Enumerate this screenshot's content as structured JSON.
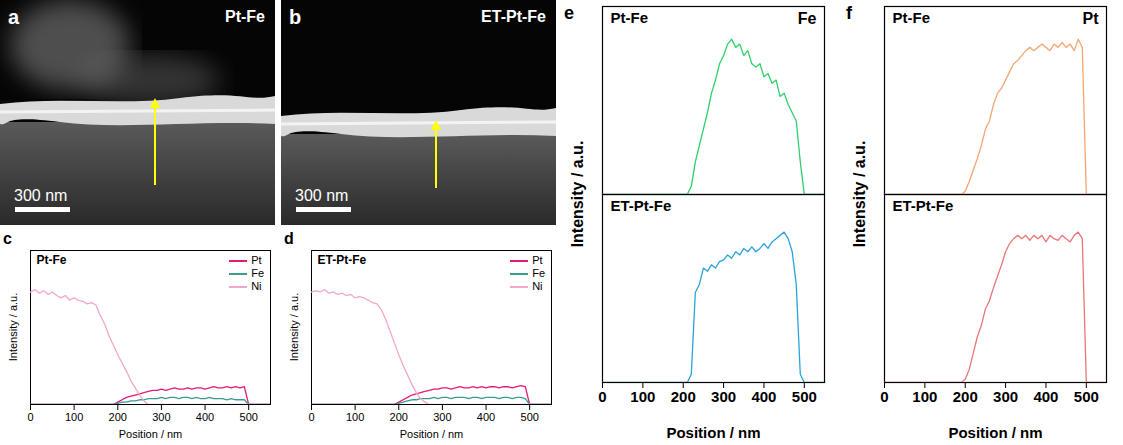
{
  "images": [
    {
      "panel_label": "a",
      "label": "Pt-Fe",
      "scale_bar": "300 nm"
    },
    {
      "panel_label": "b",
      "label": "ET-Pt-Fe",
      "scale_bar": "300 nm"
    }
  ],
  "chart_data": [
    {
      "panel_label": "c",
      "type": "line",
      "title": "Pt-Fe",
      "xlabel": "Position / nm",
      "ylabel": "Intensity / a.u.",
      "x": [
        0,
        10,
        20,
        30,
        40,
        50,
        60,
        70,
        80,
        90,
        100,
        110,
        120,
        130,
        140,
        150,
        160,
        170,
        180,
        190,
        200,
        210,
        220,
        230,
        240,
        250,
        260,
        270,
        280,
        290,
        300,
        310,
        320,
        330,
        340,
        350,
        360,
        370,
        380,
        390,
        400,
        410,
        420,
        430,
        440,
        450,
        460,
        470,
        480,
        490,
        500,
        510,
        520,
        530,
        540,
        550
      ],
      "xlim": [
        0,
        550
      ],
      "xticks": [
        0,
        100,
        200,
        300,
        400,
        500
      ],
      "ylim": [
        0,
        1.3
      ],
      "yticks": [],
      "tick_labels": "x",
      "legend": "top-right",
      "series": [
        {
          "name": "Pt",
          "color": "#e4197c",
          "values": [
            0,
            0,
            0,
            0,
            0,
            0,
            0,
            0,
            0,
            0,
            0,
            0,
            0,
            0,
            0,
            0,
            0,
            0,
            0,
            0,
            0.02,
            0.04,
            0.06,
            0.07,
            0.08,
            0.09,
            0.1,
            0.11,
            0.12,
            0.12,
            0.13,
            0.12,
            0.13,
            0.14,
            0.13,
            0.13,
            0.14,
            0.13,
            0.14,
            0.14,
            0.13,
            0.14,
            0.15,
            0.14,
            0.14,
            0.15,
            0.14,
            0.15,
            0.14,
            0.15,
            0,
            0,
            0,
            0,
            0,
            0
          ]
        },
        {
          "name": "Fe",
          "color": "#3b9b8f",
          "values": [
            0,
            0,
            0,
            0,
            0,
            0,
            0,
            0,
            0,
            0,
            0,
            0,
            0,
            0,
            0,
            0,
            0,
            0,
            0,
            0,
            0.01,
            0.02,
            0.02,
            0.03,
            0.03,
            0.04,
            0.04,
            0.05,
            0.05,
            0.05,
            0.06,
            0.05,
            0.06,
            0.06,
            0.05,
            0.06,
            0.06,
            0.05,
            0.06,
            0.05,
            0.05,
            0.06,
            0.05,
            0.05,
            0.05,
            0.04,
            0.05,
            0.04,
            0.04,
            0.04,
            0,
            0,
            0,
            0,
            0,
            0
          ]
        },
        {
          "name": "Ni",
          "color": "#f2a7c9",
          "values": [
            0.95,
            0.97,
            0.94,
            0.96,
            0.93,
            0.95,
            0.92,
            0.9,
            0.92,
            0.88,
            0.9,
            0.88,
            0.87,
            0.85,
            0.86,
            0.84,
            0.75,
            0.68,
            0.58,
            0.5,
            0.42,
            0.35,
            0.28,
            0.2,
            0.14,
            0.08,
            0.03,
            0,
            0,
            0,
            0,
            0,
            0,
            0,
            0,
            0,
            0,
            0,
            0,
            0,
            0,
            0,
            0,
            0,
            0,
            0,
            0,
            0,
            0,
            0,
            0,
            0,
            0,
            0,
            0,
            0
          ]
        }
      ]
    },
    {
      "panel_label": "d",
      "type": "line",
      "title": "ET-Pt-Fe",
      "xlabel": "Position / nm",
      "ylabel": "Intensity / a.u.",
      "x": [
        0,
        10,
        20,
        30,
        40,
        50,
        60,
        70,
        80,
        90,
        100,
        110,
        120,
        130,
        140,
        150,
        160,
        170,
        180,
        190,
        200,
        210,
        220,
        230,
        240,
        250,
        260,
        270,
        280,
        290,
        300,
        310,
        320,
        330,
        340,
        350,
        360,
        370,
        380,
        390,
        400,
        410,
        420,
        430,
        440,
        450,
        460,
        470,
        480,
        490,
        500,
        510,
        520,
        530,
        540,
        550
      ],
      "xlim": [
        0,
        550
      ],
      "xticks": [
        0,
        100,
        200,
        300,
        400,
        500
      ],
      "ylim": [
        0,
        1.3
      ],
      "yticks": [],
      "tick_labels": "x",
      "legend": "top-right",
      "series": [
        {
          "name": "Pt",
          "color": "#e4197c",
          "values": [
            0,
            0,
            0,
            0,
            0,
            0,
            0,
            0,
            0,
            0,
            0,
            0,
            0,
            0,
            0,
            0,
            0,
            0,
            0,
            0,
            0.02,
            0.04,
            0.06,
            0.08,
            0.09,
            0.1,
            0.11,
            0.12,
            0.13,
            0.13,
            0.14,
            0.14,
            0.13,
            0.14,
            0.15,
            0.14,
            0.14,
            0.15,
            0.14,
            0.15,
            0.14,
            0.15,
            0.15,
            0.14,
            0.15,
            0.15,
            0.14,
            0.15,
            0.16,
            0.15,
            0,
            0,
            0,
            0,
            0,
            0
          ]
        },
        {
          "name": "Fe",
          "color": "#3b9b8f",
          "values": [
            0,
            0,
            0,
            0,
            0,
            0,
            0,
            0,
            0,
            0,
            0,
            0,
            0,
            0,
            0,
            0,
            0,
            0,
            0,
            0,
            0.01,
            0.02,
            0.03,
            0.04,
            0.04,
            0.05,
            0.05,
            0.05,
            0.06,
            0.05,
            0.06,
            0.06,
            0.05,
            0.06,
            0.06,
            0.06,
            0.05,
            0.06,
            0.06,
            0.05,
            0.06,
            0.06,
            0.06,
            0.05,
            0.06,
            0.06,
            0.05,
            0.06,
            0.06,
            0.05,
            0,
            0,
            0,
            0,
            0,
            0
          ]
        },
        {
          "name": "Ni",
          "color": "#f2a7c9",
          "values": [
            0.95,
            0.96,
            0.95,
            0.97,
            0.94,
            0.95,
            0.93,
            0.94,
            0.92,
            0.93,
            0.9,
            0.91,
            0.9,
            0.88,
            0.86,
            0.85,
            0.8,
            0.72,
            0.62,
            0.52,
            0.42,
            0.33,
            0.25,
            0.17,
            0.1,
            0.05,
            0.02,
            0,
            0,
            0,
            0,
            0,
            0,
            0,
            0,
            0,
            0,
            0,
            0,
            0,
            0,
            0,
            0,
            0,
            0,
            0,
            0,
            0,
            0,
            0,
            0,
            0,
            0,
            0,
            0,
            0
          ]
        }
      ]
    },
    {
      "panel_label": "e",
      "type": "line",
      "title": "Fe",
      "xlabel": "Position / nm",
      "ylabel": "Intensity / a.u.",
      "x": [
        0,
        10,
        20,
        30,
        40,
        50,
        60,
        70,
        80,
        90,
        100,
        110,
        120,
        130,
        140,
        150,
        160,
        170,
        180,
        190,
        200,
        210,
        220,
        230,
        240,
        250,
        260,
        270,
        280,
        290,
        300,
        310,
        320,
        330,
        340,
        350,
        360,
        370,
        380,
        390,
        400,
        410,
        420,
        430,
        440,
        450,
        460,
        470,
        480,
        490,
        500,
        510,
        520,
        530,
        540,
        550
      ],
      "xlim": [
        0,
        550
      ],
      "xticks": [
        0,
        100,
        200,
        300,
        400,
        500
      ],
      "ylim": [
        0,
        1.15
      ],
      "yticks": [],
      "tick_labels": "x",
      "series": [
        {
          "name": "Pt-Fe",
          "color": "#2fcf6b",
          "values": [
            0,
            0,
            0,
            0,
            0,
            0,
            0,
            0,
            0,
            0,
            0,
            0,
            0,
            0,
            0,
            0,
            0,
            0,
            0,
            0,
            0,
            0,
            0.05,
            0.2,
            0.3,
            0.4,
            0.5,
            0.62,
            0.7,
            0.8,
            0.85,
            0.92,
            0.95,
            0.9,
            0.92,
            0.85,
            0.88,
            0.8,
            0.78,
            0.8,
            0.72,
            0.74,
            0.68,
            0.7,
            0.6,
            0.62,
            0.55,
            0.5,
            0.45,
            0.2,
            0,
            0,
            0,
            0,
            0,
            0
          ]
        },
        {
          "name": "ET-Pt-Fe",
          "color": "#29a3dc",
          "values": [
            0,
            0,
            0,
            0,
            0,
            0,
            0,
            0,
            0,
            0,
            0,
            0,
            0,
            0,
            0,
            0,
            0,
            0,
            0,
            0,
            0,
            0,
            0.05,
            0.55,
            0.6,
            0.7,
            0.68,
            0.72,
            0.7,
            0.74,
            0.75,
            0.78,
            0.76,
            0.8,
            0.78,
            0.82,
            0.8,
            0.83,
            0.8,
            0.82,
            0.85,
            0.82,
            0.86,
            0.88,
            0.9,
            0.92,
            0.88,
            0.8,
            0.6,
            0.05,
            0,
            0,
            0,
            0,
            0,
            0
          ]
        }
      ]
    },
    {
      "panel_label": "f",
      "type": "line",
      "title": "Pt",
      "xlabel": "Position / nm",
      "ylabel": "Intensity / a.u.",
      "x": [
        0,
        10,
        20,
        30,
        40,
        50,
        60,
        70,
        80,
        90,
        100,
        110,
        120,
        130,
        140,
        150,
        160,
        170,
        180,
        190,
        200,
        210,
        220,
        230,
        240,
        250,
        260,
        270,
        280,
        290,
        300,
        310,
        320,
        330,
        340,
        350,
        360,
        370,
        380,
        390,
        400,
        410,
        420,
        430,
        440,
        450,
        460,
        470,
        480,
        490,
        500,
        510,
        520,
        530,
        540,
        550
      ],
      "xlim": [
        0,
        550
      ],
      "xticks": [
        0,
        100,
        200,
        300,
        400,
        500
      ],
      "ylim": [
        0,
        1.15
      ],
      "yticks": [],
      "tick_labels": "x",
      "series": [
        {
          "name": "Pt-Fe",
          "color": "#f5a673",
          "values": [
            0,
            0,
            0,
            0,
            0,
            0,
            0,
            0,
            0,
            0,
            0,
            0,
            0,
            0,
            0,
            0,
            0,
            0,
            0,
            0,
            0.02,
            0.08,
            0.15,
            0.22,
            0.3,
            0.4,
            0.45,
            0.55,
            0.62,
            0.65,
            0.7,
            0.75,
            0.8,
            0.82,
            0.85,
            0.88,
            0.9,
            0.88,
            0.9,
            0.92,
            0.9,
            0.88,
            0.92,
            0.9,
            0.93,
            0.9,
            0.92,
            0.88,
            0.95,
            0.9,
            0,
            0,
            0,
            0,
            0,
            0
          ]
        },
        {
          "name": "ET-Pt-Fe",
          "color": "#e9777a",
          "values": [
            0,
            0,
            0,
            0,
            0,
            0,
            0,
            0,
            0,
            0,
            0,
            0,
            0,
            0,
            0,
            0,
            0,
            0,
            0,
            0,
            0.02,
            0.08,
            0.18,
            0.28,
            0.35,
            0.45,
            0.5,
            0.58,
            0.65,
            0.72,
            0.8,
            0.85,
            0.88,
            0.9,
            0.88,
            0.9,
            0.87,
            0.9,
            0.88,
            0.9,
            0.86,
            0.9,
            0.88,
            0.87,
            0.9,
            0.88,
            0.86,
            0.9,
            0.92,
            0.88,
            0,
            0,
            0,
            0,
            0,
            0
          ]
        }
      ]
    }
  ]
}
